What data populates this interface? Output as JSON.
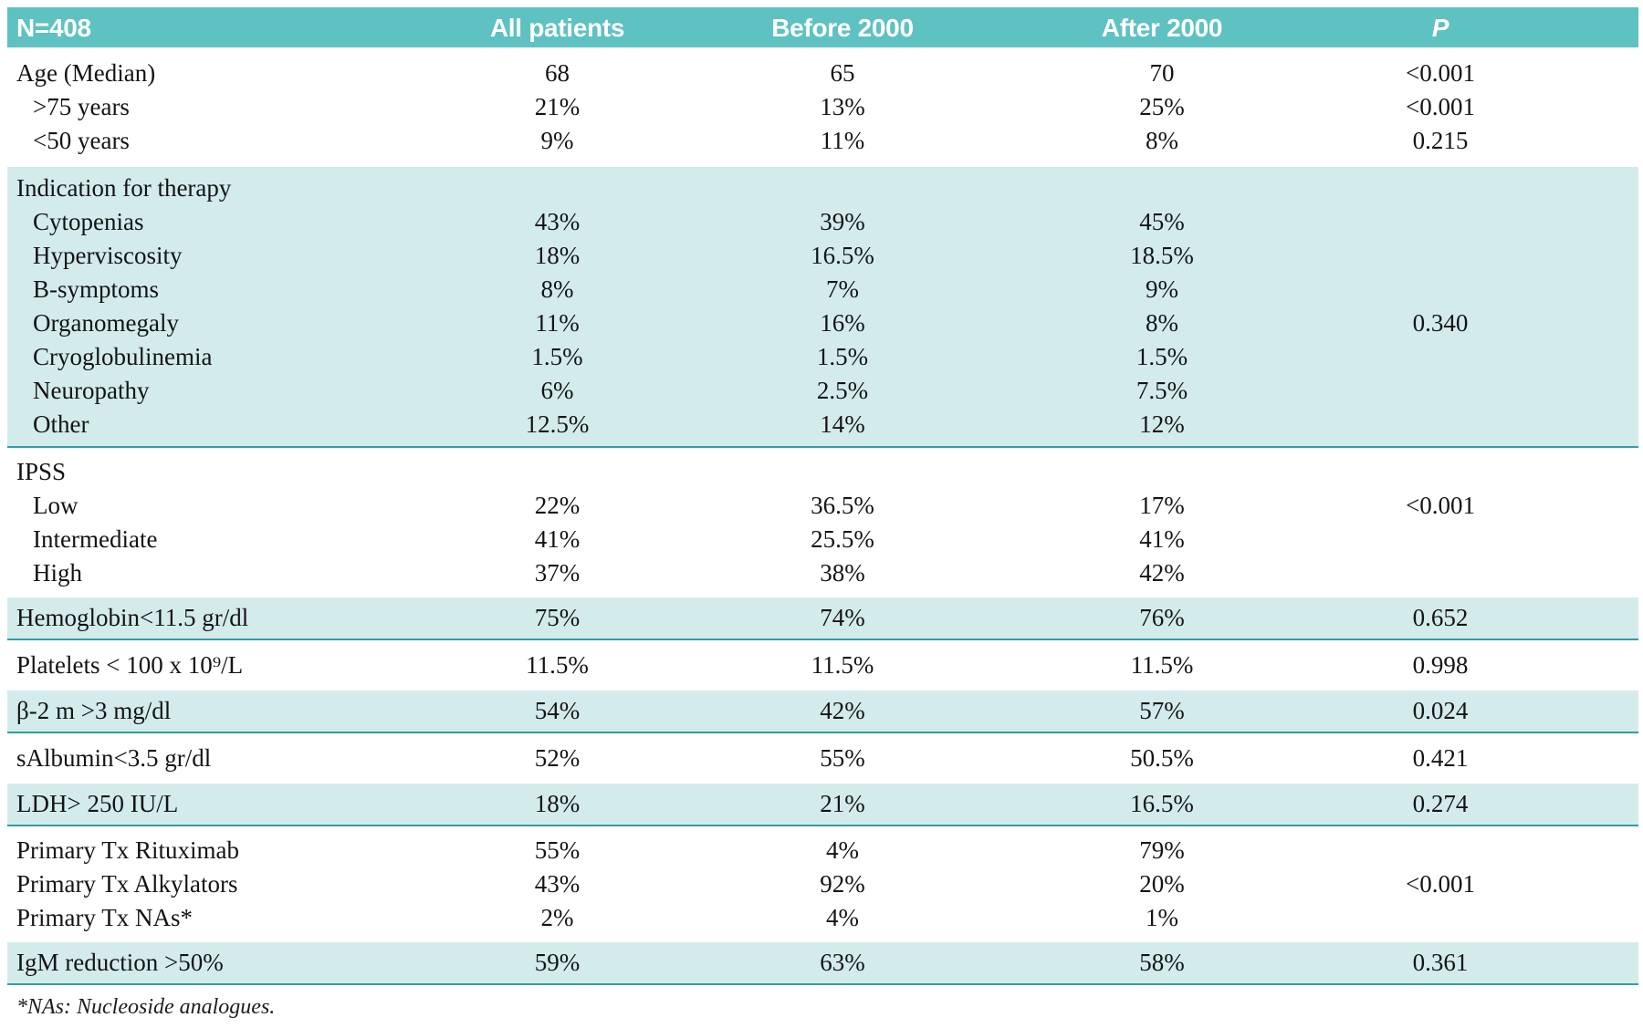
{
  "header": {
    "columns": [
      {
        "label": "N=408"
      },
      {
        "label": "All patients"
      },
      {
        "label": "Before 2000"
      },
      {
        "label": "After 2000"
      },
      {
        "label": "P"
      }
    ]
  },
  "sections": [
    {
      "shaded": false,
      "rows": [
        {
          "label": "Age (Median)",
          "indent": false,
          "values": [
            "68",
            "65",
            "70",
            "<0.001"
          ]
        },
        {
          "label": ">75 years",
          "indent": true,
          "values": [
            "21%",
            "13%",
            "25%",
            "<0.001"
          ]
        },
        {
          "label": "<50 years",
          "indent": true,
          "values": [
            "9%",
            "11%",
            "8%",
            "0.215"
          ]
        }
      ]
    },
    {
      "shaded": true,
      "rows": [
        {
          "label": "Indication for therapy",
          "indent": false,
          "values": [
            "",
            "",
            "",
            ""
          ]
        },
        {
          "label": "Cytopenias",
          "indent": true,
          "values": [
            "43%",
            "39%",
            "45%",
            ""
          ]
        },
        {
          "label": "Hyperviscosity",
          "indent": true,
          "values": [
            "18%",
            "16.5%",
            "18.5%",
            ""
          ]
        },
        {
          "label": "B-symptoms",
          "indent": true,
          "values": [
            "8%",
            "7%",
            "9%",
            ""
          ]
        },
        {
          "label": "Organomegaly",
          "indent": true,
          "values": [
            "11%",
            "16%",
            "8%",
            "0.340"
          ]
        },
        {
          "label": "Cryoglobulinemia",
          "indent": true,
          "values": [
            "1.5%",
            "1.5%",
            "1.5%",
            ""
          ]
        },
        {
          "label": "Neuropathy",
          "indent": true,
          "values": [
            "6%",
            "2.5%",
            "7.5%",
            ""
          ]
        },
        {
          "label": "Other",
          "indent": true,
          "values": [
            "12.5%",
            "14%",
            "12%",
            ""
          ]
        }
      ]
    },
    {
      "shaded": false,
      "variant": "ipss",
      "rows": [
        {
          "label": "IPSS",
          "indent": false,
          "values": [
            "",
            "",
            "",
            ""
          ]
        },
        {
          "label": "Low",
          "indent": true,
          "values": [
            "22%",
            "36.5%",
            "17%",
            "<0.001"
          ]
        },
        {
          "label": "Intermediate",
          "indent": true,
          "values": [
            "41%",
            "25.5%",
            "41%",
            ""
          ]
        },
        {
          "label": "High",
          "indent": true,
          "values": [
            "37%",
            "38%",
            "42%",
            ""
          ]
        }
      ]
    },
    {
      "shaded": true,
      "rows": [
        {
          "label": "Hemoglobin<11.5 gr/dl",
          "indent": false,
          "values": [
            "75%",
            "74%",
            "76%",
            "0.652"
          ]
        }
      ]
    },
    {
      "shaded": false,
      "rows": [
        {
          "label": "Platelets < 100 x 10⁹/L",
          "indent": false,
          "values": [
            "11.5%",
            "11.5%",
            "11.5%",
            "0.998"
          ]
        }
      ]
    },
    {
      "shaded": true,
      "rows": [
        {
          "label": "β-2 m >3 mg/dl",
          "indent": false,
          "values": [
            "54%",
            "42%",
            "57%",
            "0.024"
          ]
        }
      ]
    },
    {
      "shaded": false,
      "rows": [
        {
          "label": "sAlbumin<3.5 gr/dl",
          "indent": false,
          "values": [
            "52%",
            "55%",
            "50.5%",
            "0.421"
          ]
        }
      ]
    },
    {
      "shaded": true,
      "rows": [
        {
          "label": "LDH> 250 IU/L",
          "indent": false,
          "values": [
            "18%",
            "21%",
            "16.5%",
            "0.274"
          ]
        }
      ]
    },
    {
      "shaded": false,
      "variant": "tx",
      "rows": [
        {
          "label": "Primary Tx Rituximab",
          "indent": false,
          "values": [
            "55%",
            "4%",
            "79%",
            ""
          ]
        },
        {
          "label": "Primary Tx Alkylators",
          "indent": false,
          "values": [
            "43%",
            "92%",
            "20%",
            "<0.001"
          ]
        },
        {
          "label": "Primary Tx NAs*",
          "indent": false,
          "values": [
            "2%",
            "4%",
            "1%",
            ""
          ]
        }
      ]
    },
    {
      "shaded": true,
      "rows": [
        {
          "label": "IgM reduction >50%",
          "indent": false,
          "values": [
            "59%",
            "63%",
            "58%",
            "0.361"
          ]
        }
      ]
    }
  ],
  "footnote": "*NAs: Nucleoside analogues.",
  "colors": {
    "header_bg": "#5ec1c2",
    "band_bg": "#d3eceb",
    "divider": "#2f9fa1",
    "header_text": "#ffffff",
    "text": "#141414"
  }
}
